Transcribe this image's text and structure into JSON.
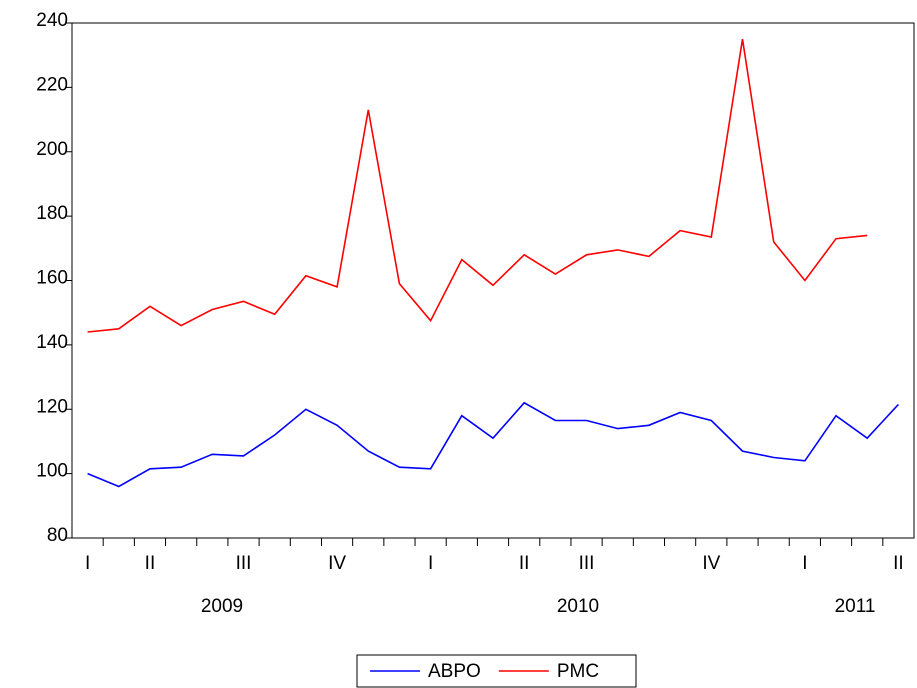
{
  "chart_data": {
    "type": "line",
    "categories": [
      "I",
      null,
      "II",
      null,
      null,
      "III",
      null,
      null,
      "IV",
      null,
      null,
      "I",
      null,
      null,
      "II",
      null,
      "III",
      null,
      null,
      null,
      "IV",
      null,
      null,
      "I",
      null,
      null,
      "II"
    ],
    "years": [
      "2009",
      "2010",
      "2011"
    ],
    "series": [
      {
        "name": "ABPO",
        "color": "#0000ff",
        "values": [
          100,
          96,
          101.5,
          102,
          106,
          105.5,
          112,
          120,
          115,
          107,
          102,
          101.5,
          118,
          111,
          122,
          116.5,
          116.5,
          114,
          115,
          119,
          116.5,
          107,
          105,
          104,
          118,
          111,
          121.5
        ]
      },
      {
        "name": "PMC",
        "color": "#ff0000",
        "values": [
          144,
          145,
          152,
          146,
          151,
          153.5,
          149.5,
          161.5,
          158,
          213,
          159,
          147.5,
          166.5,
          158.5,
          168,
          162,
          168,
          169.5,
          167.5,
          175.5,
          173.5,
          235,
          172,
          160,
          173,
          174,
          null
        ]
      }
    ],
    "ylim": [
      80,
      240
    ],
    "yticks": [
      80,
      100,
      120,
      140,
      160,
      180,
      200,
      220,
      240
    ]
  }
}
